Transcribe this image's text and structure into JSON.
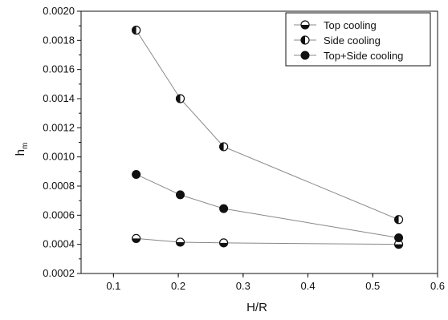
{
  "chart_data": {
    "type": "line",
    "title": "",
    "xlabel": "H/R",
    "ylabel": "h",
    "ylabel_subscript": "m",
    "xlim": [
      0.05,
      0.6
    ],
    "ylim": [
      0.0002,
      0.002
    ],
    "x_ticks": [
      0.1,
      0.2,
      0.3,
      0.4,
      0.5,
      0.6
    ],
    "x_tick_labels": [
      "0.1",
      "0.2",
      "0.3",
      "0.4",
      "0.5",
      "0.6"
    ],
    "y_ticks": [
      0.0002,
      0.0004,
      0.0006,
      0.0008,
      0.001,
      0.0012,
      0.0014,
      0.0016,
      0.0018,
      0.002
    ],
    "y_tick_labels": [
      "0.0002",
      "0.0004",
      "0.0006",
      "0.0008",
      "0.0010",
      "0.0012",
      "0.0014",
      "0.0016",
      "0.0018",
      "0.0020"
    ],
    "grid": false,
    "legend_position": "top-right",
    "line_color": "#888888",
    "marker_color": "#111111",
    "series": [
      {
        "name": "Top cooling",
        "marker": "half-bottom",
        "x": [
          0.135,
          0.203,
          0.27,
          0.54
        ],
        "y": [
          0.00044,
          0.000415,
          0.00041,
          0.0004
        ]
      },
      {
        "name": "Side cooling",
        "marker": "half-left",
        "x": [
          0.135,
          0.203,
          0.27,
          0.54
        ],
        "y": [
          0.00187,
          0.0014,
          0.00107,
          0.00057
        ]
      },
      {
        "name": "Top+Side cooling",
        "marker": "filled",
        "x": [
          0.135,
          0.203,
          0.27,
          0.54
        ],
        "y": [
          0.00088,
          0.00074,
          0.000645,
          0.000445
        ]
      }
    ]
  }
}
